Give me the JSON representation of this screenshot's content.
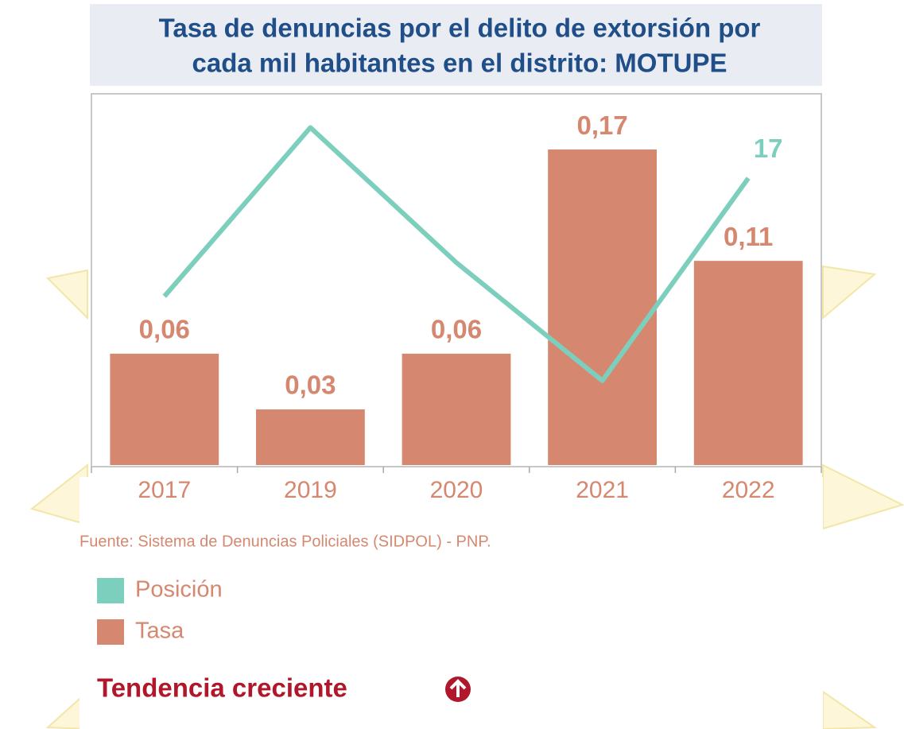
{
  "chart_data": {
    "type": "combo",
    "title": [
      "Tasa de denuncias por el delito de extorsión por",
      "cada mil habitantes en el distrito: MOTUPE"
    ],
    "categories": [
      "2017",
      "2019",
      "2020",
      "2021",
      "2022"
    ],
    "series": [
      {
        "name": "Posición",
        "type": "line",
        "axis": "y2",
        "color": "#7dcfbd",
        "values": [
          10,
          20,
          12,
          5,
          17
        ]
      },
      {
        "name": "Tasa",
        "type": "bar",
        "color": "#d5876f",
        "values": [
          0.06,
          0.03,
          0.06,
          0.17,
          0.11
        ],
        "value_labels": [
          "0,06",
          "0,03",
          "0,06",
          "0,17",
          "0,11"
        ]
      }
    ],
    "ylim": [
      0,
      0.2
    ],
    "y2lim": [
      0,
      22
    ],
    "source": "Fuente: Sistema de Denuncias Policiales (SIDPOL) - PNP.",
    "trend": "Tendencia creciente"
  }
}
